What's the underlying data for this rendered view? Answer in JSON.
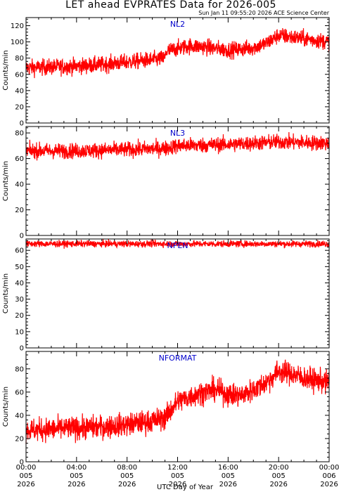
{
  "chart_data": {
    "type": "line",
    "title": "LET ahead EVPRATES Data for 2026-005",
    "subtitle": "Sun Jan 11 09:55:20 2026 ACE Science Center",
    "xlabel": "UTC Day of Year",
    "xticks": [
      {
        "time": "00:00",
        "day": "005",
        "year": "2026"
      },
      {
        "time": "04:00",
        "day": "005",
        "year": "2026"
      },
      {
        "time": "08:00",
        "day": "005",
        "year": "2026"
      },
      {
        "time": "12:00",
        "day": "005",
        "year": "2026"
      },
      {
        "time": "16:00",
        "day": "005",
        "year": "2026"
      },
      {
        "time": "20:00",
        "day": "005",
        "year": "2026"
      },
      {
        "time": "00:00",
        "day": "006",
        "year": "2026"
      }
    ],
    "xlim_hours": [
      0,
      24
    ],
    "line_color": "#ff0000",
    "label_color": "#0000cc",
    "panels": [
      {
        "name": "NL2",
        "ylabel": "Counts/min",
        "ylim": [
          0,
          130
        ],
        "yticks": [
          0,
          20,
          40,
          60,
          80,
          100,
          120
        ],
        "series": {
          "hours": [
            0,
            2,
            4,
            6,
            8,
            10,
            11,
            11.1,
            12,
            13,
            14,
            15,
            16,
            17,
            18,
            19,
            20,
            21,
            22,
            23,
            24
          ],
          "values": [
            68,
            69,
            70,
            72,
            75,
            78,
            80,
            88,
            92,
            95,
            94,
            92,
            90,
            91,
            93,
            98,
            108,
            106,
            104,
            102,
            100
          ],
          "noise": 5
        }
      },
      {
        "name": "NL3",
        "ylabel": "Counts/min",
        "ylim": [
          0,
          85
        ],
        "yticks": [
          0,
          20,
          40,
          60,
          80
        ],
        "series": {
          "hours": [
            0,
            4,
            8,
            11,
            12,
            16,
            20,
            24
          ],
          "values": [
            66,
            66,
            67,
            68,
            70,
            71,
            73,
            72
          ],
          "noise": 3
        }
      },
      {
        "name": "NPEN",
        "ylabel": "Counts/min",
        "ylim": [
          0,
          67
        ],
        "yticks": [
          0,
          10,
          20,
          30,
          40,
          50,
          60
        ],
        "series": {
          "hours": [
            0,
            24
          ],
          "values": [
            64,
            64
          ],
          "noise": 1
        }
      },
      {
        "name": "NFORMAT",
        "ylabel": "Counts/min",
        "ylim": [
          0,
          95
        ],
        "yticks": [
          0,
          20,
          40,
          60,
          80
        ],
        "series": {
          "hours": [
            0,
            2,
            4,
            6,
            8,
            10,
            11,
            11.5,
            12,
            13,
            14,
            15,
            16,
            17,
            18,
            19,
            20,
            21,
            22,
            23,
            24
          ],
          "values": [
            27,
            28,
            29,
            30,
            32,
            35,
            38,
            45,
            52,
            56,
            60,
            62,
            58,
            57,
            62,
            68,
            78,
            76,
            72,
            70,
            68
          ],
          "noise": 5
        }
      }
    ]
  }
}
